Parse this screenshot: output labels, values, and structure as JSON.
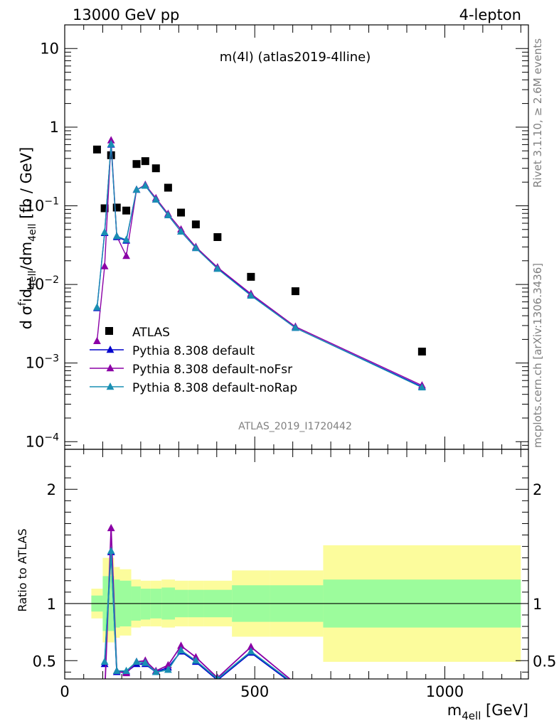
{
  "header": {
    "left": "13000 GeV pp",
    "right": "4-lepton"
  },
  "side_labels": {
    "rivet": "Rivet 3.1.10, ≥ 2.6M events",
    "mcplots": "mcplots.cern.ch [arXiv:1306.3436]"
  },
  "chart_data": [
    {
      "type": "scatter",
      "panel": "main",
      "title": "m(4l) (atlas2019-4lline)",
      "analysis_label": "ATLAS_2019_I1720442",
      "xlabel": "m4ell [GeV]",
      "ylabel": "d σfid4ell/dm4ell [fb / GeV]",
      "ylabel_parts": {
        "d": "d σ",
        "sup": "f",
        "mid": "id",
        "sub1": "4ell",
        "div": "/dm",
        "sub2": "4ell",
        "unit": " [fb / GeV]"
      },
      "xlim": [
        0,
        1220
      ],
      "ylim": [
        8e-05,
        20
      ],
      "yscale": "log",
      "yticks": [
        {
          "value": 10,
          "label": "10"
        },
        {
          "value": 1,
          "label": "1"
        },
        {
          "value": 0.1,
          "base": "10",
          "exp": "−1"
        },
        {
          "value": 0.01,
          "base": "10",
          "exp": "−2"
        },
        {
          "value": 0.001,
          "base": "10",
          "exp": "−3"
        },
        {
          "value": 0.0001,
          "base": "10",
          "exp": "−4"
        }
      ],
      "legend_position": "lower-left",
      "series": [
        {
          "name": "ATLAS",
          "marker": "square",
          "color": "#000000",
          "x": [
            85,
            105,
            122,
            137,
            162,
            189,
            212,
            240,
            272,
            306,
            345,
            402,
            490,
            607,
            940
          ],
          "y": [
            0.52,
            0.093,
            0.44,
            0.095,
            0.087,
            0.34,
            0.37,
            0.3,
            0.17,
            0.082,
            0.058,
            0.04,
            0.0125,
            0.0082,
            0.0014
          ]
        },
        {
          "name": "Pythia 8.308 default",
          "marker": "triangle",
          "color": "#0000cc",
          "x": [
            85,
            105,
            122,
            137,
            162,
            189,
            212,
            240,
            272,
            306,
            345,
            402,
            490,
            607,
            940
          ],
          "y": [
            0.005,
            0.045,
            0.6,
            0.04,
            0.036,
            0.16,
            0.18,
            0.12,
            0.076,
            0.047,
            0.029,
            0.016,
            0.0073,
            0.0028,
            0.0005
          ]
        },
        {
          "name": "Pythia 8.308 default-noFsr",
          "marker": "triangle",
          "color": "#8b00a6",
          "x": [
            85,
            105,
            122,
            137,
            162,
            189,
            212,
            240,
            272,
            306,
            345,
            402,
            490,
            607,
            940
          ],
          "y": [
            0.0019,
            0.017,
            0.68,
            0.041,
            0.023,
            0.16,
            0.185,
            0.125,
            0.079,
            0.05,
            0.03,
            0.0165,
            0.0076,
            0.0029,
            0.00052
          ]
        },
        {
          "name": "Pythia 8.308 default-noRap",
          "marker": "triangle",
          "color": "#1a8fb3",
          "x": [
            85,
            105,
            122,
            137,
            162,
            189,
            212,
            240,
            272,
            306,
            345,
            402,
            490,
            607,
            940
          ],
          "y": [
            0.0051,
            0.046,
            0.61,
            0.041,
            0.037,
            0.16,
            0.18,
            0.12,
            0.076,
            0.047,
            0.029,
            0.0158,
            0.0072,
            0.0028,
            0.00049
          ]
        }
      ]
    },
    {
      "type": "line",
      "panel": "ratio",
      "ylabel": "Ratio to ATLAS",
      "xlabel": "m4ell [GeV]",
      "xlim": [
        0,
        1220
      ],
      "ylim": [
        0.34,
        2.35
      ],
      "xticks": [
        0,
        500,
        1000
      ],
      "yticks": [
        0.5,
        1,
        2
      ],
      "reference_line": 1,
      "bands": {
        "edges": [
          70,
          100,
          115,
          130,
          145,
          175,
          200,
          225,
          255,
          290,
          325,
          365,
          440,
          540,
          680,
          1200
        ],
        "stat_lo": [
          0.93,
          0.76,
          0.76,
          0.79,
          0.8,
          0.85,
          0.86,
          0.87,
          0.86,
          0.88,
          0.88,
          0.88,
          0.84,
          0.84,
          0.79
        ],
        "stat_hi": [
          1.07,
          1.24,
          1.24,
          1.21,
          1.2,
          1.15,
          1.13,
          1.13,
          1.14,
          1.12,
          1.12,
          1.12,
          1.16,
          1.16,
          1.21
        ],
        "total_lo": [
          0.87,
          0.66,
          0.66,
          0.7,
          0.72,
          0.79,
          0.8,
          0.8,
          0.79,
          0.8,
          0.8,
          0.8,
          0.71,
          0.71,
          0.49
        ],
        "total_hi": [
          1.13,
          1.4,
          1.4,
          1.32,
          1.3,
          1.21,
          1.2,
          1.2,
          1.21,
          1.2,
          1.2,
          1.2,
          1.29,
          1.29,
          1.51
        ],
        "stat_color": "#9cfc9c",
        "total_color": "#fcfc9c"
      },
      "series": [
        {
          "name": "Pythia 8.308 default",
          "color": "#0000cc",
          "x": [
            105,
            122,
            137,
            162,
            189,
            212,
            240,
            272,
            306,
            345,
            402,
            490,
            607
          ],
          "y": [
            0.47,
            1.45,
            0.4,
            0.4,
            0.47,
            0.47,
            0.4,
            0.44,
            0.58,
            0.49,
            0.33,
            0.57,
            0.28
          ]
        },
        {
          "name": "Pythia 8.308 default-noFsr",
          "color": "#8b00a6",
          "x": [
            85,
            105,
            122,
            137,
            162,
            189,
            212,
            240,
            272,
            306,
            345,
            402,
            490,
            607
          ],
          "y": [
            0.29,
            0.19,
            1.66,
            0.41,
            0.39,
            0.49,
            0.5,
            0.41,
            0.46,
            0.63,
            0.53,
            0.35,
            0.62,
            0.3
          ]
        },
        {
          "name": "Pythia 8.308 default-noRap",
          "color": "#1a8fb3",
          "x": [
            105,
            122,
            137,
            162,
            189,
            212,
            240,
            272,
            306,
            345,
            402,
            490,
            607
          ],
          "y": [
            0.49,
            1.46,
            0.41,
            0.41,
            0.49,
            0.48,
            0.4,
            0.42,
            0.59,
            0.5,
            0.34,
            0.58,
            0.29
          ]
        }
      ]
    }
  ]
}
